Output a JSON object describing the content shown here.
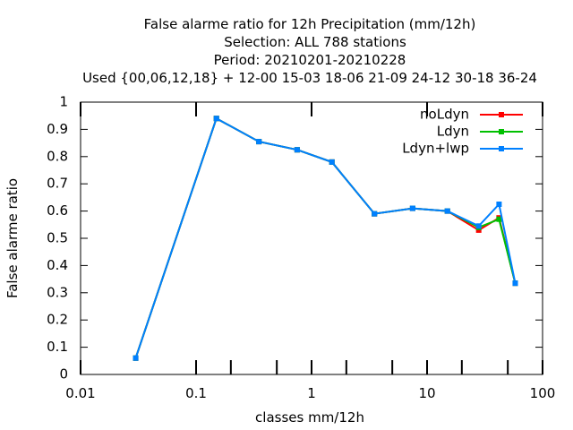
{
  "chart_data": {
    "type": "line",
    "title_lines": [
      "False alarme ratio  for 12h Precipitation (mm/12h)",
      "Selection: ALL    788 stations",
      "Period: 20210201-20210228",
      "Used {00,06,12,18} + 12-00 15-03 18-06 21-09 24-12 30-18 36-24"
    ],
    "xlabel": "classes mm/12h",
    "ylabel": "False alarme ratio",
    "xscale": "log",
    "xlim": [
      0.01,
      100
    ],
    "ylim": [
      0,
      1
    ],
    "x_tick_labels": [
      "0.01",
      "0.1",
      "1",
      "10",
      "100"
    ],
    "y_tick_labels": [
      "0",
      "0.1",
      "0.2",
      "0.3",
      "0.4",
      "0.5",
      "0.6",
      "0.7",
      "0.8",
      "0.9",
      "1"
    ],
    "x_minor_marks": [
      0.2,
      0.5,
      2,
      5,
      20,
      50
    ],
    "legend_position": "top-right",
    "grid": false,
    "x": [
      0.03,
      0.15,
      0.35,
      0.75,
      1.5,
      3.5,
      7.5,
      15,
      28,
      42,
      58
    ],
    "series": [
      {
        "name": "noLdyn",
        "color": "#ff0000",
        "values": [
          0.06,
          0.94,
          0.855,
          0.825,
          0.78,
          0.59,
          0.61,
          0.6,
          0.53,
          0.575,
          0.335
        ]
      },
      {
        "name": "Ldyn",
        "color": "#00c000",
        "values": [
          0.06,
          0.94,
          0.855,
          0.825,
          0.78,
          0.59,
          0.61,
          0.6,
          0.54,
          0.57,
          0.335
        ]
      },
      {
        "name": "Ldyn+lwp",
        "color": "#0080ff",
        "values": [
          0.06,
          0.94,
          0.855,
          0.825,
          0.78,
          0.59,
          0.61,
          0.6,
          0.545,
          0.625,
          0.335
        ]
      }
    ]
  }
}
